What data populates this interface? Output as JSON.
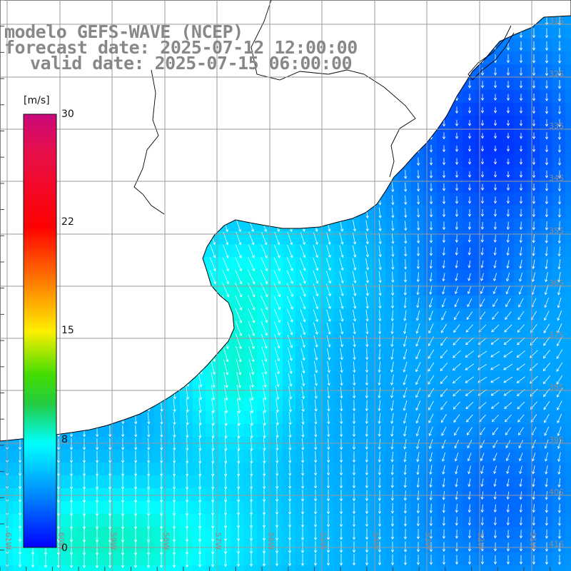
{
  "title": {
    "line1": "modelo GEFS-WAVE (NCEP)",
    "line2": "forecast date: 2025-07-12 12:00:00",
    "line3": "valid date: 2025-07-15 06:00:00"
  },
  "colorbar": {
    "unit": "[m/s]",
    "min": 0,
    "max": 30,
    "ticks": [
      "30",
      "22",
      "15",
      "8",
      "0"
    ],
    "colors": [
      "#c8087a",
      "#ff0000",
      "#ff8800",
      "#ffee00",
      "#22cc00",
      "#00ffff",
      "#0088ff",
      "#0000ff"
    ]
  },
  "map": {
    "lon_range": [
      -61,
      -50.5
    ],
    "lat_range": [
      -41.3,
      -31.3
    ],
    "lat_labels": [
      "31S",
      "32S",
      "33S",
      "34S",
      "35S",
      "36S",
      "37S",
      "38S",
      "39S",
      "40S",
      "41S"
    ],
    "lon_labels": [
      "61W",
      "60W",
      "59W",
      "58W",
      "57W",
      "56W",
      "55W",
      "54W",
      "53W",
      "52W",
      "51W"
    ],
    "gridline_color": "#999999",
    "land_color": "#ffffff",
    "coast_color": "#000000",
    "arrow_color": "#ffffff"
  }
}
